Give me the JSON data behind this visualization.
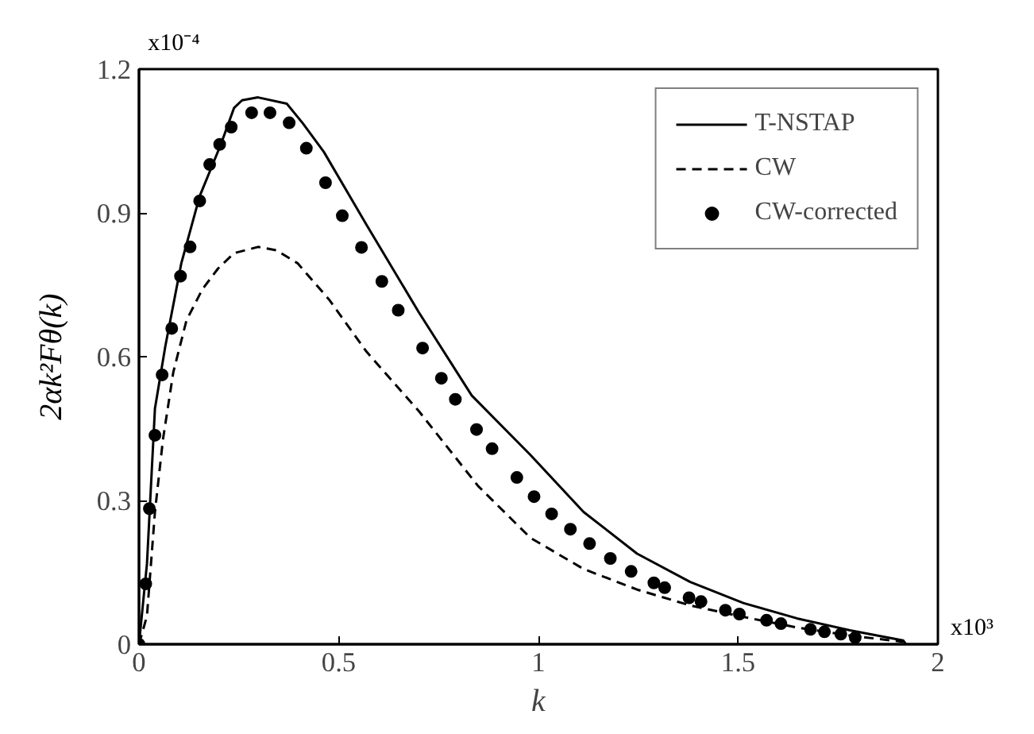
{
  "chart_data": {
    "type": "line",
    "xlabel": "k",
    "ylabel": "2αk²Fθ(k)",
    "xlim": [
      0,
      2
    ],
    "ylim": [
      0,
      1.2
    ],
    "xticks": [
      0,
      0.5,
      1,
      1.5,
      2
    ],
    "yticks": [
      0,
      0.3,
      0.6,
      0.9,
      1.2
    ],
    "annotations": [
      "x10⁻⁴",
      "x10³"
    ],
    "legend": "top right",
    "grid": false,
    "series": [
      {
        "name": "T-NSTAP",
        "color": "#000000",
        "type": "line",
        "line_style": "solid",
        "x": [
          0,
          0.02,
          0.04,
          0.066,
          0.106,
          0.152,
          0.205,
          0.238,
          0.258,
          0.298,
          0.37,
          0.41,
          0.463,
          0.569,
          0.701,
          0.833,
          0.98,
          1.113,
          1.247,
          1.38,
          1.513,
          1.647,
          1.78,
          1.913,
          1.92
        ],
        "values": [
          0,
          0.168,
          0.492,
          0.622,
          0.795,
          0.935,
          1.043,
          1.119,
          1.135,
          1.141,
          1.128,
          1.087,
          1.027,
          0.876,
          0.692,
          0.519,
          0.395,
          0.276,
          0.189,
          0.13,
          0.086,
          0.054,
          0.029,
          0.008,
          0
        ]
      },
      {
        "name": "CW",
        "color": "#000000",
        "type": "line",
        "line_style": "dashed",
        "x": [
          0,
          0.02,
          0.04,
          0.06,
          0.086,
          0.119,
          0.159,
          0.198,
          0.238,
          0.298,
          0.344,
          0.397,
          0.476,
          0.569,
          0.701,
          0.849,
          0.98,
          1.113,
          1.247,
          1.38,
          1.513,
          1.647,
          1.78,
          1.913
        ],
        "values": [
          0,
          0.059,
          0.276,
          0.427,
          0.568,
          0.676,
          0.741,
          0.784,
          0.816,
          0.829,
          0.822,
          0.795,
          0.719,
          0.611,
          0.486,
          0.33,
          0.222,
          0.157,
          0.114,
          0.081,
          0.057,
          0.035,
          0.018,
          0.005
        ]
      },
      {
        "name": "CW-corrected",
        "color": "#000000",
        "type": "scatter",
        "marker": "circle",
        "x": [
          0,
          0.017,
          0.026,
          0.04,
          0.058,
          0.082,
          0.104,
          0.128,
          0.152,
          0.177,
          0.202,
          0.231,
          0.282,
          0.328,
          0.376,
          0.419,
          0.467,
          0.509,
          0.557,
          0.608,
          0.649,
          0.71,
          0.757,
          0.792,
          0.845,
          0.884,
          0.946,
          0.989,
          1.033,
          1.08,
          1.128,
          1.18,
          1.232,
          1.289,
          1.316,
          1.377,
          1.407,
          1.468,
          1.503,
          1.571,
          1.607,
          1.681,
          1.716,
          1.757,
          1.793
        ],
        "values": [
          0,
          0.126,
          0.283,
          0.436,
          0.562,
          0.659,
          0.768,
          0.829,
          0.925,
          1.001,
          1.043,
          1.079,
          1.109,
          1.109,
          1.088,
          1.035,
          0.963,
          0.894,
          0.828,
          0.757,
          0.697,
          0.618,
          0.555,
          0.511,
          0.448,
          0.408,
          0.348,
          0.308,
          0.272,
          0.24,
          0.21,
          0.179,
          0.152,
          0.128,
          0.118,
          0.097,
          0.089,
          0.071,
          0.063,
          0.05,
          0.043,
          0.031,
          0.026,
          0.021,
          0.014
        ]
      }
    ]
  }
}
